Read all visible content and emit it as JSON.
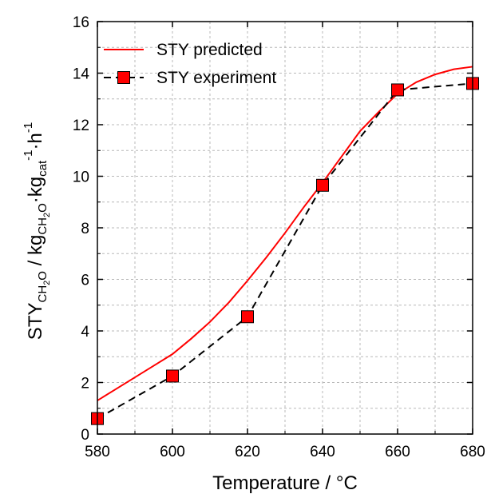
{
  "chart_data": {
    "type": "line",
    "xlabel": "Temperature / °C",
    "ylabel": {
      "parts": [
        {
          "text": "STY",
          "shift": "base"
        },
        {
          "text": "CH",
          "shift": "sub"
        },
        {
          "text": "2",
          "shift": "subsub"
        },
        {
          "text": "O",
          "shift": "sub"
        },
        {
          "text": " / kg",
          "shift": "base"
        },
        {
          "text": "CH",
          "shift": "sub"
        },
        {
          "text": "2",
          "shift": "subsub"
        },
        {
          "text": "O",
          "shift": "sub"
        },
        {
          "text": "·kg",
          "shift": "base"
        },
        {
          "text": "cat",
          "shift": "sub"
        },
        {
          "text": "-1",
          "shift": "sup"
        },
        {
          "text": "·h",
          "shift": "base"
        },
        {
          "text": "-1",
          "shift": "sup"
        }
      ]
    },
    "xlim": [
      580,
      680
    ],
    "ylim": [
      0,
      16
    ],
    "xticks": [
      580,
      600,
      620,
      640,
      660,
      680
    ],
    "yticks": [
      0,
      2,
      4,
      6,
      8,
      10,
      12,
      14,
      16
    ],
    "grid": true,
    "legend_position": "top-left",
    "series": [
      {
        "name": "STY predicted",
        "style": "solid-line",
        "color": "#ff0000",
        "x": [
          580,
          585,
          590,
          595,
          600,
          605,
          610,
          615,
          620,
          625,
          630,
          635,
          640,
          645,
          650,
          655,
          660,
          665,
          670,
          675,
          680
        ],
        "y": [
          1.3,
          1.75,
          2.2,
          2.65,
          3.1,
          3.7,
          4.35,
          5.1,
          5.95,
          6.85,
          7.8,
          8.8,
          9.75,
          10.75,
          11.75,
          12.5,
          13.2,
          13.65,
          13.95,
          14.15,
          14.25
        ]
      },
      {
        "name": "STY experiment",
        "style": "dashed-line-square-markers",
        "color": "#000000",
        "marker_color": "#ff0000",
        "x": [
          580,
          600,
          620,
          640,
          660,
          680
        ],
        "y": [
          0.6,
          2.25,
          4.55,
          9.65,
          13.35,
          13.6
        ]
      }
    ]
  }
}
